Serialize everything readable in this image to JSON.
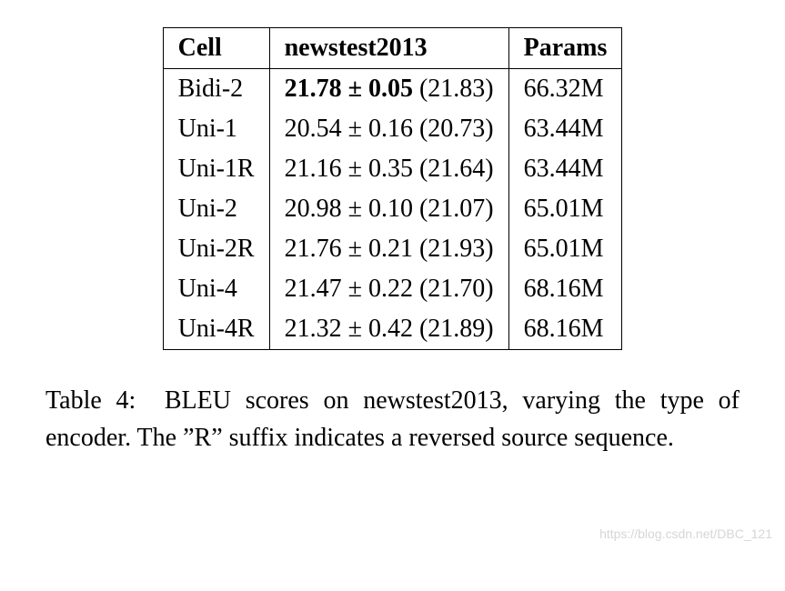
{
  "table": {
    "columns": [
      "Cell",
      "newstest2013",
      "Params"
    ],
    "rows": [
      {
        "cell": "Bidi-2",
        "mean": "21.78",
        "pm": "0.05",
        "paren": "21.83",
        "bold": true,
        "params": "66.32M"
      },
      {
        "cell": "Uni-1",
        "mean": "20.54",
        "pm": "0.16",
        "paren": "20.73",
        "bold": false,
        "params": "63.44M"
      },
      {
        "cell": "Uni-1R",
        "mean": "21.16",
        "pm": "0.35",
        "paren": "21.64",
        "bold": false,
        "params": "63.44M"
      },
      {
        "cell": "Uni-2",
        "mean": "20.98",
        "pm": "0.10",
        "paren": "21.07",
        "bold": false,
        "params": "65.01M"
      },
      {
        "cell": "Uni-2R",
        "mean": "21.76",
        "pm": "0.21",
        "paren": "21.93",
        "bold": false,
        "params": "65.01M"
      },
      {
        "cell": "Uni-4",
        "mean": "21.47",
        "pm": "0.22",
        "paren": "21.70",
        "bold": false,
        "params": "68.16M"
      },
      {
        "cell": "Uni-4R",
        "mean": "21.32",
        "pm": "0.42",
        "paren": "21.89",
        "bold": false,
        "params": "68.16M"
      }
    ],
    "header_font_weight": "bold",
    "border_color": "#000000",
    "background_color": "#ffffff",
    "font_family": "Times New Roman",
    "font_size_pt": 28
  },
  "pm_symbol": "±",
  "caption": {
    "label": "Table 4:",
    "text": "BLEU scores on newstest2013, varying the type of encoder.  The ”R” suffix indicates a reversed source sequence."
  },
  "watermark": "https://blog.csdn.net/DBC_121"
}
